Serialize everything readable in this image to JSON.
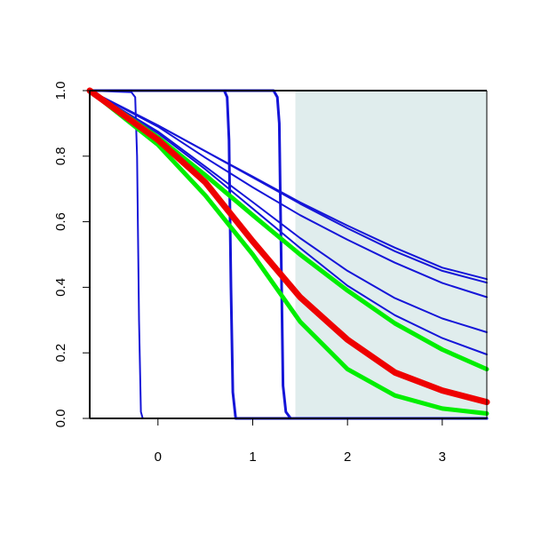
{
  "chart_data": {
    "type": "line",
    "title": "",
    "xlabel": "",
    "ylabel": "",
    "xlim": [
      -0.72,
      3.47
    ],
    "ylim": [
      0,
      1
    ],
    "x_ticks": [
      0,
      1,
      2,
      3
    ],
    "x_tick_labels": [
      "0",
      "1",
      "2",
      "3"
    ],
    "y_ticks": [
      0,
      0.2,
      0.4,
      0.6,
      0.8,
      1
    ],
    "y_tick_labels": [
      "0.0",
      "0.2",
      "0.4",
      "0.6",
      "0.8",
      "1.0"
    ],
    "grid": false,
    "legend": "none",
    "shaded_region": {
      "x_from": 1.45,
      "x_to": 3.47,
      "color": "#e0eded"
    },
    "series": [
      {
        "color": "#1515d8",
        "width": 2,
        "points": [
          [
            -0.72,
            1.0
          ],
          [
            -0.28,
            0.995
          ],
          [
            -0.24,
            0.98
          ],
          [
            -0.22,
            0.8
          ],
          [
            -0.2,
            0.3
          ],
          [
            -0.18,
            0.02
          ],
          [
            -0.16,
            0.0
          ],
          [
            3.47,
            0.0
          ]
        ]
      },
      {
        "color": "#1515d8",
        "width": 3,
        "points": [
          [
            -0.72,
            1.0
          ],
          [
            0.7,
            1.0
          ],
          [
            0.73,
            0.98
          ],
          [
            0.75,
            0.85
          ],
          [
            0.77,
            0.4
          ],
          [
            0.79,
            0.08
          ],
          [
            0.82,
            0.0
          ],
          [
            3.47,
            0.0
          ]
        ]
      },
      {
        "color": "#1515d8",
        "width": 3,
        "points": [
          [
            -0.72,
            1.0
          ],
          [
            1.22,
            1.0
          ],
          [
            1.26,
            0.98
          ],
          [
            1.28,
            0.9
          ],
          [
            1.3,
            0.5
          ],
          [
            1.32,
            0.1
          ],
          [
            1.35,
            0.02
          ],
          [
            1.4,
            0.0
          ],
          [
            3.47,
            0.0
          ]
        ]
      },
      {
        "color": "#1515d8",
        "width": 2,
        "points": [
          [
            -0.72,
            1.0
          ],
          [
            0.0,
            0.894
          ],
          [
            0.5,
            0.815
          ],
          [
            1.0,
            0.738
          ],
          [
            1.5,
            0.659
          ],
          [
            2.0,
            0.588
          ],
          [
            2.5,
            0.521
          ],
          [
            3.0,
            0.46
          ],
          [
            3.47,
            0.425
          ]
        ]
      },
      {
        "color": "#1515d8",
        "width": 2,
        "points": [
          [
            -0.72,
            1.0
          ],
          [
            0.0,
            0.894
          ],
          [
            0.5,
            0.815
          ],
          [
            1.0,
            0.735
          ],
          [
            1.5,
            0.655
          ],
          [
            2.0,
            0.58
          ],
          [
            2.5,
            0.51
          ],
          [
            3.0,
            0.45
          ],
          [
            3.47,
            0.414
          ]
        ]
      },
      {
        "color": "#1515d8",
        "width": 2,
        "points": [
          [
            -0.72,
            1.0
          ],
          [
            0.0,
            0.89
          ],
          [
            0.5,
            0.795
          ],
          [
            1.0,
            0.705
          ],
          [
            1.5,
            0.62
          ],
          [
            2.0,
            0.545
          ],
          [
            2.5,
            0.475
          ],
          [
            3.0,
            0.413
          ],
          [
            3.47,
            0.37
          ]
        ]
      },
      {
        "color": "#1515d8",
        "width": 2,
        "points": [
          [
            -0.72,
            1.0
          ],
          [
            0.0,
            0.875
          ],
          [
            0.5,
            0.768
          ],
          [
            1.0,
            0.66
          ],
          [
            1.5,
            0.55
          ],
          [
            2.0,
            0.45
          ],
          [
            2.5,
            0.367
          ],
          [
            3.0,
            0.305
          ],
          [
            3.47,
            0.263
          ]
        ]
      },
      {
        "color": "#1515d8",
        "width": 2,
        "points": [
          [
            -0.72,
            1.0
          ],
          [
            0.0,
            0.87
          ],
          [
            0.5,
            0.76
          ],
          [
            1.0,
            0.64
          ],
          [
            1.5,
            0.52
          ],
          [
            2.0,
            0.405
          ],
          [
            2.5,
            0.315
          ],
          [
            3.0,
            0.245
          ],
          [
            3.47,
            0.195
          ]
        ]
      },
      {
        "color": "#00ee00",
        "width": 5,
        "points": [
          [
            -0.72,
            1.0
          ],
          [
            0.0,
            0.858
          ],
          [
            0.5,
            0.742
          ],
          [
            1.0,
            0.62
          ],
          [
            1.5,
            0.5
          ],
          [
            2.0,
            0.39
          ],
          [
            2.5,
            0.29
          ],
          [
            3.0,
            0.21
          ],
          [
            3.47,
            0.15
          ]
        ]
      },
      {
        "color": "#00ee00",
        "width": 5,
        "points": [
          [
            -0.72,
            1.0
          ],
          [
            0.0,
            0.835
          ],
          [
            0.5,
            0.68
          ],
          [
            1.0,
            0.5
          ],
          [
            1.5,
            0.295
          ],
          [
            2.0,
            0.15
          ],
          [
            2.5,
            0.07
          ],
          [
            3.0,
            0.03
          ],
          [
            3.47,
            0.015
          ]
        ]
      },
      {
        "color": "#ee0000",
        "width": 7,
        "points": [
          [
            -0.72,
            1.0
          ],
          [
            0.0,
            0.85
          ],
          [
            0.5,
            0.72
          ],
          [
            1.0,
            0.54
          ],
          [
            1.5,
            0.37
          ],
          [
            2.0,
            0.24
          ],
          [
            2.5,
            0.14
          ],
          [
            3.0,
            0.085
          ],
          [
            3.47,
            0.05
          ]
        ]
      }
    ]
  }
}
